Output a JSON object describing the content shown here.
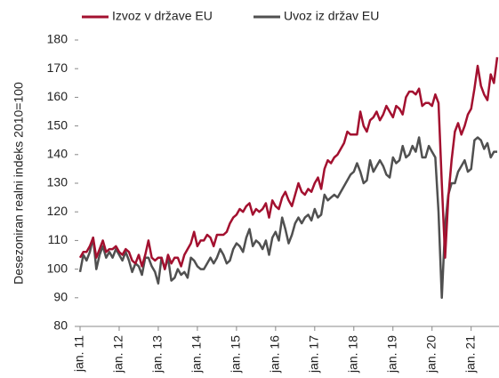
{
  "chart_data": {
    "type": "line",
    "ylabel": "Desezoniran realni indeks 2010=100",
    "categories": [
      "jan. 11",
      null,
      null,
      null,
      null,
      null,
      null,
      null,
      null,
      null,
      null,
      null,
      "jan. 12",
      null,
      null,
      null,
      null,
      null,
      null,
      null,
      null,
      null,
      null,
      null,
      "jan. 13",
      null,
      null,
      null,
      null,
      null,
      null,
      null,
      null,
      null,
      null,
      null,
      "jan. 14",
      null,
      null,
      null,
      null,
      null,
      null,
      null,
      null,
      null,
      null,
      null,
      "jan. 15",
      null,
      null,
      null,
      null,
      null,
      null,
      null,
      null,
      null,
      null,
      null,
      "jan. 16",
      null,
      null,
      null,
      null,
      null,
      null,
      null,
      null,
      null,
      null,
      null,
      "jan. 17",
      null,
      null,
      null,
      null,
      null,
      null,
      null,
      null,
      null,
      null,
      null,
      "jan. 18",
      null,
      null,
      null,
      null,
      null,
      null,
      null,
      null,
      null,
      null,
      null,
      "jan. 19",
      null,
      null,
      null,
      null,
      null,
      null,
      null,
      null,
      null,
      null,
      null,
      "jan. 20",
      null,
      null,
      null,
      null,
      null,
      null,
      null,
      null,
      null,
      null,
      null,
      "jan. 21",
      null,
      null,
      null,
      null,
      null,
      null,
      null,
      null
    ],
    "series": [
      {
        "name": "Izvoz v države EU",
        "color": "#a3102f",
        "values": [
          104,
          106,
          106,
          108,
          111,
          104,
          107,
          110,
          106,
          107,
          107,
          108,
          106,
          105,
          107,
          106,
          103,
          102,
          105,
          101,
          105,
          110,
          104,
          103,
          104,
          104,
          100,
          105,
          102,
          104,
          104,
          101,
          105,
          107,
          109,
          113,
          108,
          110,
          110,
          112,
          111,
          108,
          112,
          112,
          112,
          113,
          116,
          118,
          119,
          121,
          120,
          122,
          123,
          119,
          121,
          120,
          121,
          123,
          118,
          124,
          122,
          121,
          125,
          127,
          124,
          122,
          126,
          130,
          127,
          126,
          128,
          127,
          130,
          132,
          128,
          135,
          138,
          137,
          139,
          140,
          142,
          144,
          148,
          147,
          147,
          147,
          155,
          150,
          148,
          152,
          153,
          155,
          152,
          154,
          157,
          155,
          153,
          157,
          156,
          154,
          160,
          162,
          162,
          161,
          163,
          157,
          158,
          158,
          157,
          161,
          158,
          130,
          104,
          125,
          138,
          148,
          151,
          147,
          150,
          154,
          156,
          163,
          171,
          164,
          161,
          159,
          168,
          165,
          174
        ]
      },
      {
        "name": "Uvoz iz držav EU",
        "color": "#505050",
        "values": [
          99,
          105,
          103,
          106,
          111,
          100,
          105,
          108,
          104,
          106,
          104,
          107,
          105,
          103,
          106,
          103,
          99,
          102,
          101,
          98,
          104,
          104,
          101,
          99,
          95,
          104,
          100,
          104,
          96,
          97,
          100,
          98,
          99,
          97,
          104,
          103,
          101,
          100,
          100,
          102,
          104,
          102,
          104,
          107,
          105,
          102,
          103,
          107,
          109,
          108,
          106,
          111,
          114,
          108,
          110,
          109,
          107,
          110,
          105,
          111,
          113,
          110,
          118,
          114,
          109,
          112,
          116,
          118,
          116,
          118,
          119,
          117,
          121,
          118,
          119,
          126,
          124,
          125,
          126,
          125,
          127,
          129,
          131,
          133,
          134,
          137,
          134,
          130,
          131,
          138,
          134,
          136,
          138,
          136,
          133,
          132,
          139,
          137,
          138,
          143,
          139,
          140,
          143,
          141,
          146,
          139,
          139,
          143,
          141,
          139,
          120,
          90,
          115,
          126,
          130,
          130,
          134,
          136,
          138,
          134,
          135,
          145,
          146,
          145,
          142,
          144,
          139,
          141,
          141
        ]
      }
    ],
    "ylim": [
      80,
      180
    ],
    "yticks": [
      80,
      90,
      100,
      110,
      120,
      130,
      140,
      150,
      160,
      170,
      180
    ]
  }
}
